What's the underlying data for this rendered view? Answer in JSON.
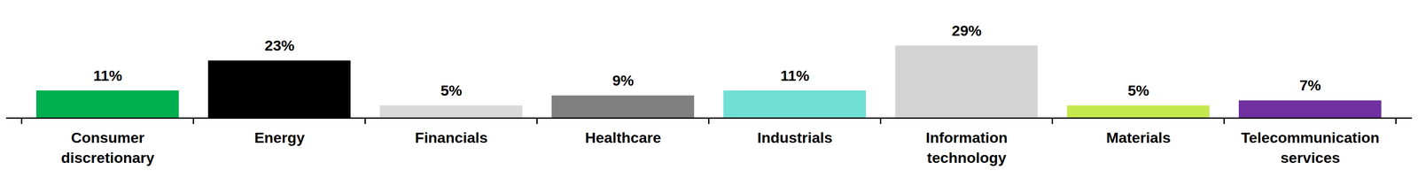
{
  "chart_data": {
    "type": "bar",
    "categories": [
      "Consumer discretionary",
      "Energy",
      "Financials",
      "Healthcare",
      "Industrials",
      "Information technology",
      "Materials",
      "Telecommunication services"
    ],
    "values": [
      11,
      23,
      5,
      9,
      11,
      29,
      5,
      7
    ],
    "value_labels": [
      "11%",
      "23%",
      "5%",
      "9%",
      "11%",
      "29%",
      "5%",
      "7%"
    ],
    "colors": [
      "#00b050",
      "#000000",
      "#d9d9d9",
      "#808080",
      "#6fe0d3",
      "#d4d4d4",
      "#c6e84f",
      "#7030a0"
    ],
    "ylim": [
      0,
      35
    ],
    "data_labels": true,
    "tick_labels": "x"
  }
}
